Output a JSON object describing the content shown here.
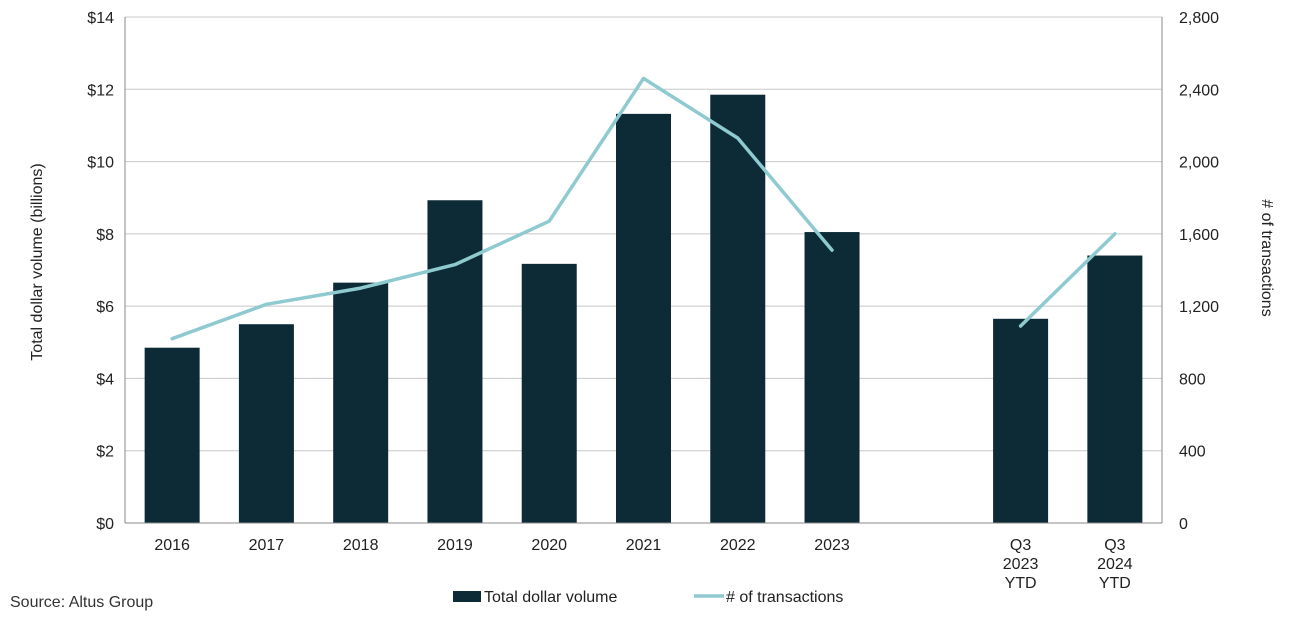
{
  "chart_data": {
    "type": "bar",
    "categories": [
      "2016",
      "2017",
      "2018",
      "2019",
      "2020",
      "2021",
      "2022",
      "2023",
      "",
      "Q3 2023 YTD",
      "Q3 2024 YTD"
    ],
    "category_lines": [
      [
        "2016"
      ],
      [
        "2017"
      ],
      [
        "2018"
      ],
      [
        "2019"
      ],
      [
        "2020"
      ],
      [
        "2021"
      ],
      [
        "2022"
      ],
      [
        "2023"
      ],
      [],
      [
        "Q3",
        "2023",
        "YTD"
      ],
      [
        "Q3",
        "2024",
        "YTD"
      ]
    ],
    "series": [
      {
        "name": "Total dollar volume",
        "type": "bar",
        "axis": "left",
        "color": "#0c2b36",
        "values": [
          4.85,
          5.5,
          6.65,
          8.93,
          7.17,
          11.32,
          11.85,
          8.05,
          null,
          5.65,
          7.4
        ]
      },
      {
        "name": "# of transactions",
        "type": "line",
        "axis": "right",
        "color": "#8ecad0",
        "segments": [
          [
            0,
            7
          ],
          [
            9,
            10
          ]
        ],
        "values": [
          1020,
          1210,
          1300,
          1430,
          1670,
          2460,
          2130,
          1510,
          null,
          1090,
          1600
        ]
      }
    ],
    "left_axis": {
      "label": "Total dollar volume (billions)",
      "range": [
        0,
        14
      ],
      "ticks": [
        0,
        2,
        4,
        6,
        8,
        10,
        12,
        14
      ],
      "tick_labels": [
        "$0",
        "$2",
        "$4",
        "$6",
        "$8",
        "$10",
        "$12",
        "$14"
      ]
    },
    "right_axis": {
      "label": "# of transactions",
      "range": [
        0,
        2800
      ],
      "ticks": [
        0,
        400,
        800,
        1200,
        1600,
        2000,
        2400,
        2800
      ],
      "tick_labels": [
        "0",
        "400",
        "800",
        "1,200",
        "1,600",
        "2,000",
        "2,400",
        "2,800"
      ]
    },
    "legend": {
      "placement": "bottom-center",
      "entries": [
        "Total dollar volume",
        "# of transactions"
      ]
    },
    "grid": true
  },
  "source": "Source:  Altus Group"
}
